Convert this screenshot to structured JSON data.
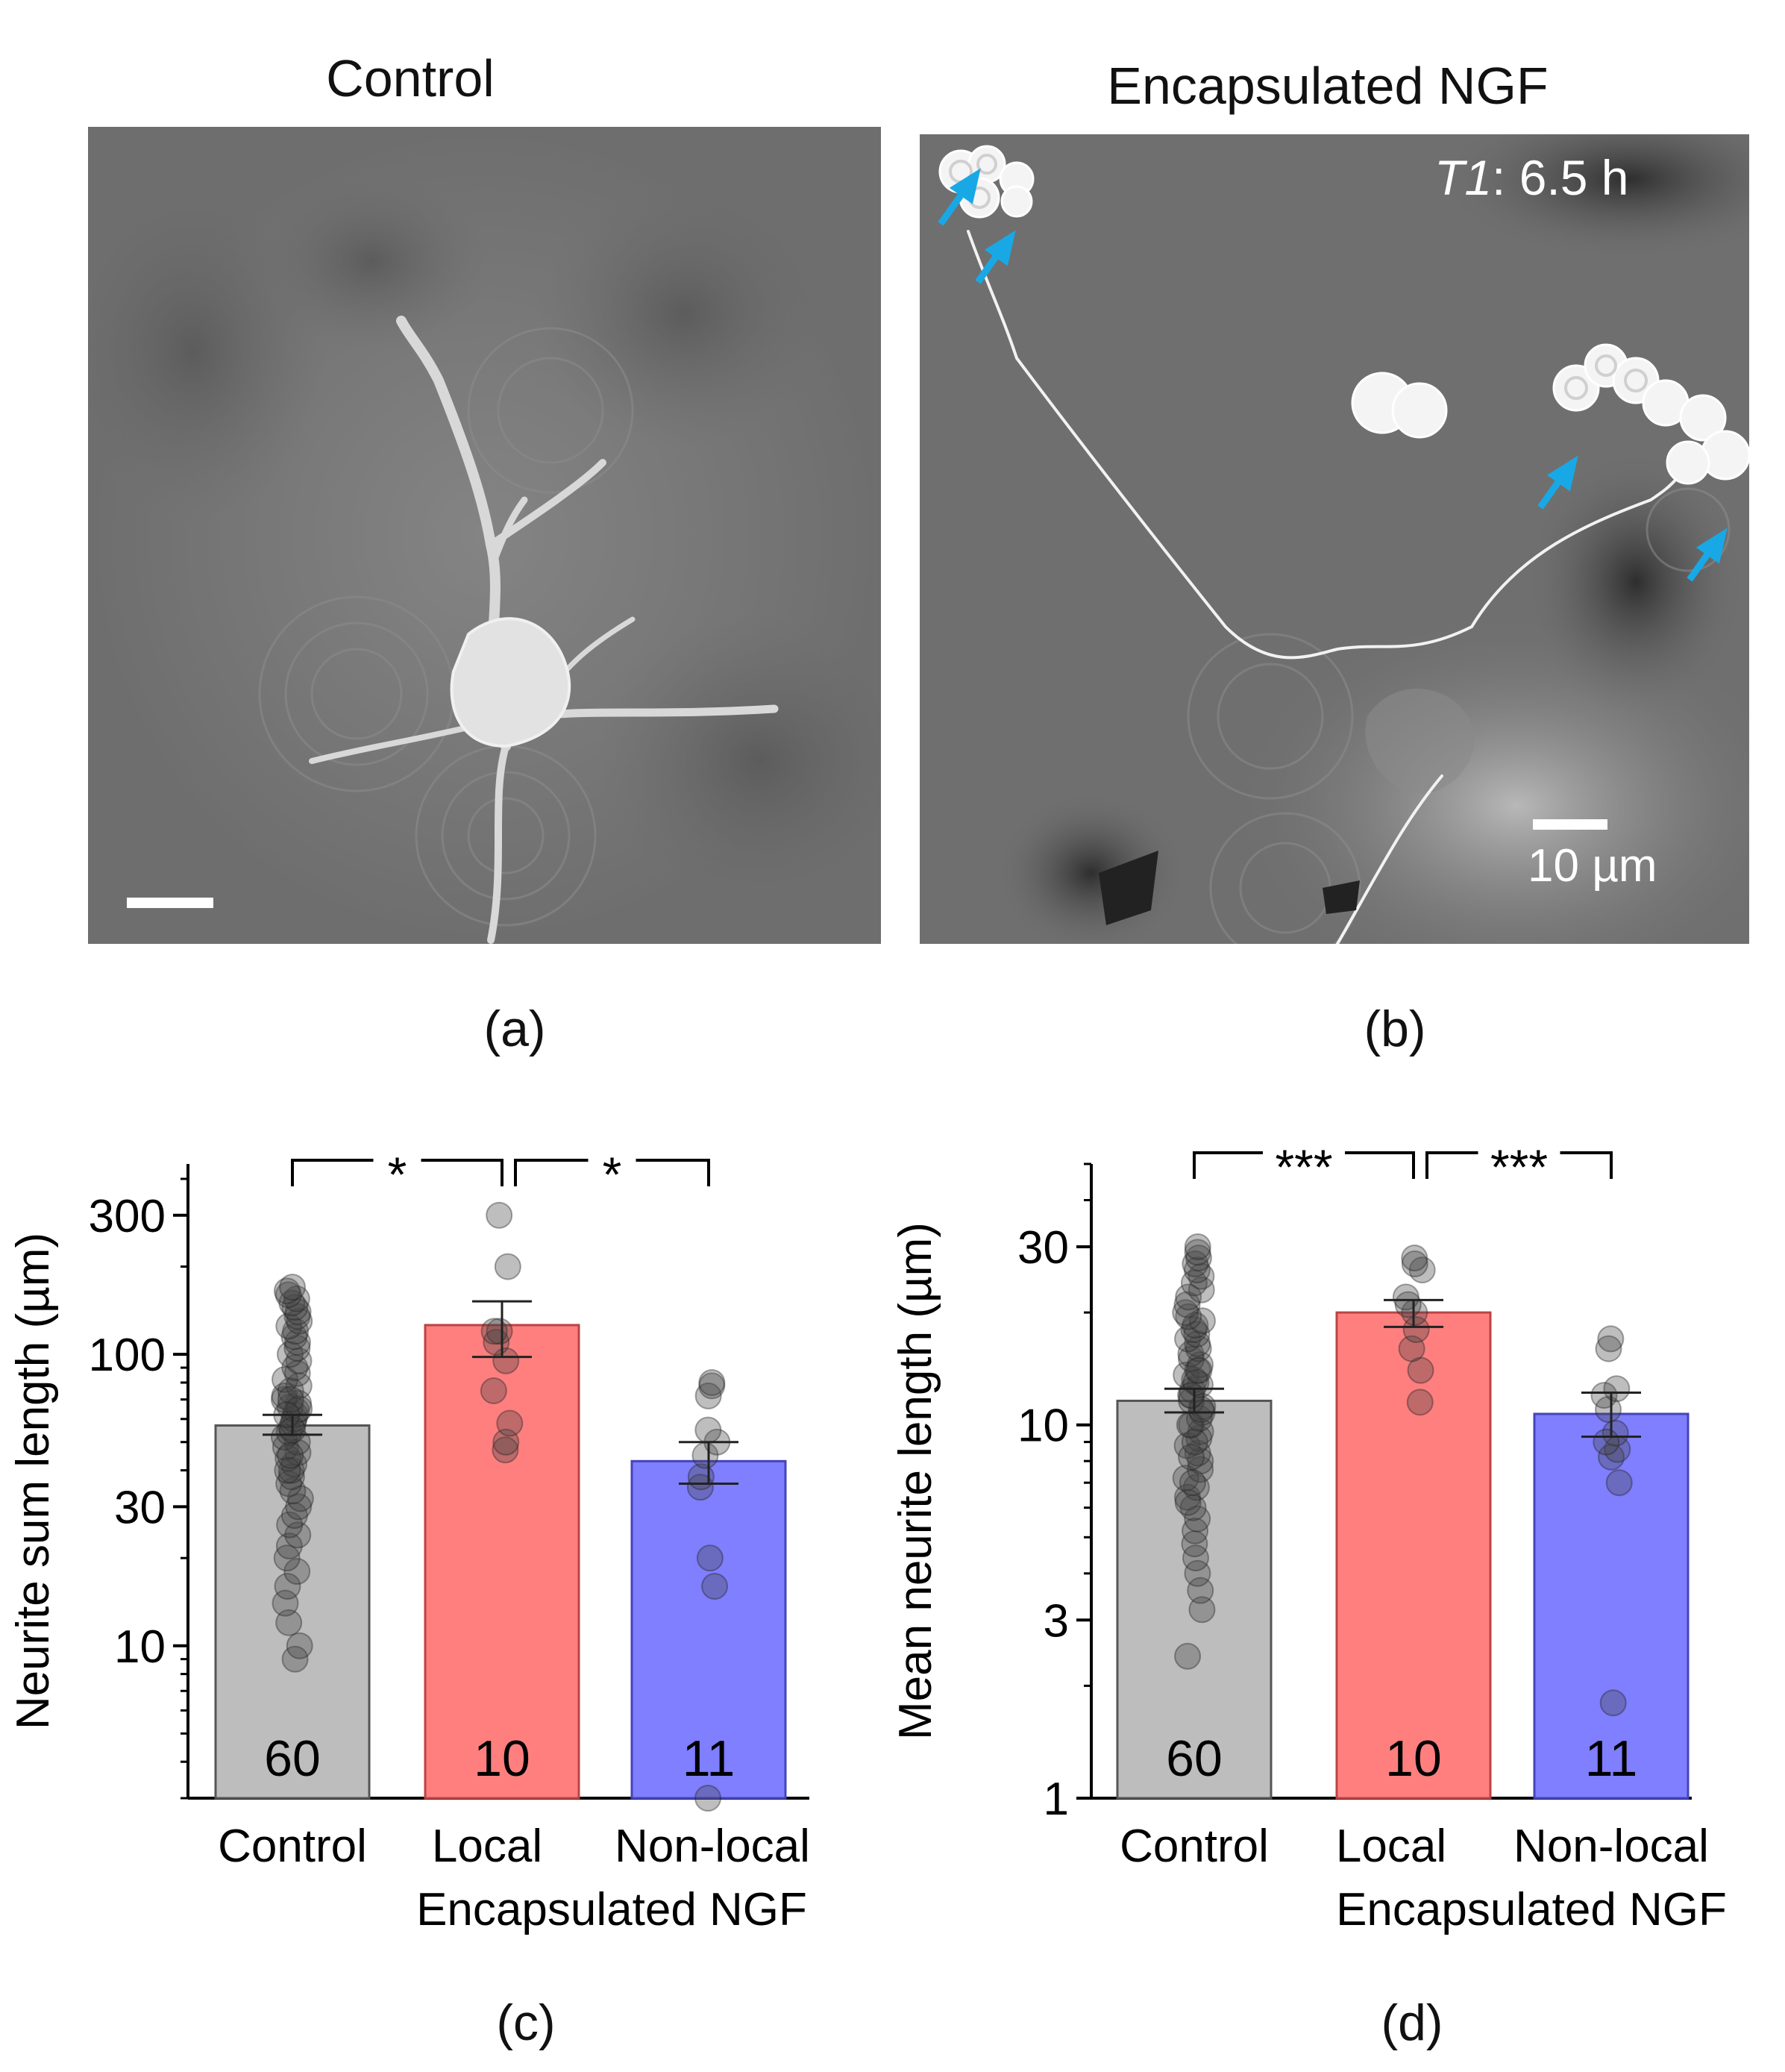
{
  "panels": {
    "a": {
      "label": "(a)",
      "title": "Control"
    },
    "b": {
      "label": "(b)",
      "title": "Encapsulated NGF",
      "time_label_var": "T1",
      "time_label_rest": ": 6.5 h",
      "scale_bar": "10 µm"
    },
    "c": {
      "label": "(c)"
    },
    "d": {
      "label": "(d)"
    }
  },
  "colors": {
    "control": "#bdbdbd",
    "local": "#ff7f7f",
    "nonlocal": "#7f7fff",
    "arrow": "#19a8e6"
  },
  "chart_data": [
    {
      "id": "c",
      "type": "bar",
      "y_scale": "log",
      "ylabel": "Neurite sum length (µm)",
      "ylim": [
        3,
        450
      ],
      "yticks": [
        10,
        30,
        100,
        300
      ],
      "ytick_labels": [
        "10",
        "30",
        "100",
        "300"
      ],
      "categories": [
        "Control",
        "Local",
        "Non-local"
      ],
      "group_label": "Encapsulated NGF",
      "values": [
        57,
        126,
        43
      ],
      "sem_low": [
        53,
        98,
        36
      ],
      "sem_high": [
        62,
        152,
        50
      ],
      "n": [
        "60",
        "10",
        "11"
      ],
      "points": [
        [
          9,
          10,
          12,
          14,
          16,
          18,
          20,
          22,
          24,
          26,
          28,
          30,
          32,
          34,
          36,
          38,
          40,
          42,
          44,
          46,
          48,
          50,
          52,
          54,
          56,
          58,
          60,
          62,
          64,
          66,
          68,
          70,
          72,
          75,
          78,
          82,
          86,
          90,
          95,
          100,
          105,
          110,
          115,
          120,
          125,
          130,
          135,
          140,
          145,
          150,
          155,
          160,
          165,
          170,
          40,
          45,
          55,
          65,
          70,
          62
        ],
        [
          47,
          50,
          58,
          75,
          95,
          110,
          120,
          200,
          300,
          120
        ],
        [
          3,
          16,
          20,
          35,
          38,
          45,
          50,
          72,
          78,
          80,
          55
        ]
      ],
      "significance": [
        {
          "from": 0,
          "to": 1,
          "label": "*"
        },
        {
          "from": 1,
          "to": 2,
          "label": "*"
        }
      ]
    },
    {
      "id": "d",
      "type": "bar",
      "y_scale": "log",
      "ylabel": "Mean neurite length (µm)",
      "ylim": [
        1,
        50
      ],
      "yticks": [
        1,
        3,
        10,
        30
      ],
      "ytick_labels": [
        "1",
        "3",
        "10",
        "30"
      ],
      "categories": [
        "Control",
        "Local",
        "Non-local"
      ],
      "group_label": "Encapsulated NGF",
      "values": [
        11.6,
        20,
        10.7
      ],
      "sem_low": [
        10.8,
        18.3,
        9.3
      ],
      "sem_high": [
        12.5,
        21.6,
        12.2
      ],
      "n": [
        "60",
        "10",
        "11"
      ],
      "points": [
        [
          2.4,
          3.2,
          3.6,
          4,
          4.4,
          4.8,
          5.2,
          5.6,
          6,
          6.4,
          6.8,
          7.2,
          7.6,
          8,
          8.4,
          8.8,
          9.2,
          9.6,
          10,
          10.4,
          10.8,
          11.2,
          11.6,
          12,
          12.4,
          12.8,
          13.2,
          13.6,
          14,
          14.5,
          15,
          15.5,
          16,
          16.5,
          17,
          17.5,
          18,
          18.5,
          19,
          19.5,
          20,
          21,
          22,
          23,
          24,
          25,
          26,
          27,
          28,
          29,
          30,
          6.2,
          7,
          8.2,
          9,
          10,
          11,
          12,
          13,
          14
        ],
        [
          11.5,
          14,
          16,
          18,
          20,
          21,
          22,
          26,
          27,
          28
        ],
        [
          1.8,
          7,
          8.2,
          8.6,
          9.5,
          11,
          12,
          16,
          17,
          12.5,
          9
        ]
      ],
      "significance": [
        {
          "from": 0,
          "to": 1,
          "label": "***"
        },
        {
          "from": 1,
          "to": 2,
          "label": "***"
        }
      ]
    }
  ]
}
